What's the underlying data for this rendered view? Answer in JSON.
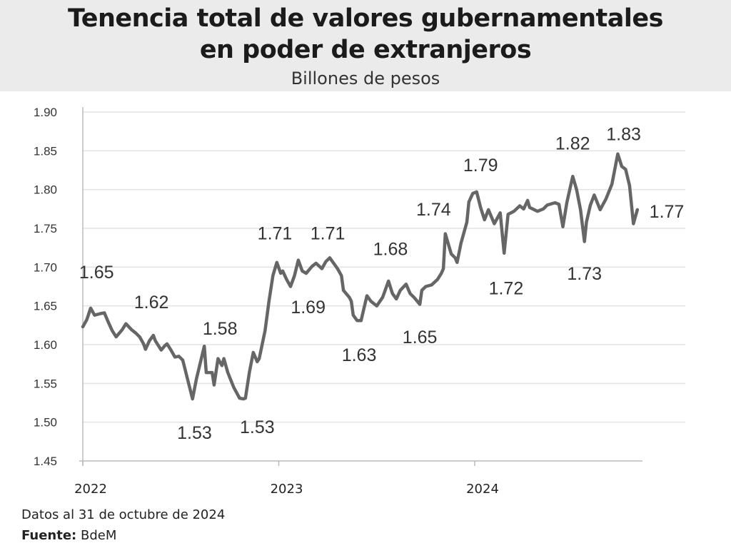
{
  "header": {
    "title_line1": "Tenencia total de valores gubernamentales",
    "title_line2": "en poder de extranjeros",
    "subtitle": "Billones de pesos"
  },
  "footer": {
    "note": "Datos al 31 de octubre de 2024",
    "source_label": "Fuente:",
    "source_value": "BdeM"
  },
  "colors": {
    "line": "#666666",
    "banner": "#ebebeb",
    "grid": "#e3e3e3"
  },
  "chart_data": {
    "type": "line",
    "title": "Tenencia total de valores gubernamentales en poder de extranjeros",
    "subtitle": "Billones de pesos",
    "xlabel": "",
    "ylabel": "",
    "xlim": [
      2022.0,
      2024.9
    ],
    "ylim": [
      1.45,
      1.9
    ],
    "yticks": [
      "1.45",
      "1.50",
      "1.55",
      "1.60",
      "1.65",
      "1.70",
      "1.75",
      "1.80",
      "1.85",
      "1.90"
    ],
    "xticks": [
      {
        "value": 2022,
        "label": "2022"
      },
      {
        "value": 2023,
        "label": "2023"
      },
      {
        "value": 2024,
        "label": "2024"
      }
    ],
    "grid": "horizontal",
    "legend": "none",
    "series": [
      {
        "x": [
          2022.0,
          2022.02,
          2022.04,
          2022.06,
          2022.09,
          2022.11,
          2022.13,
          2022.15,
          2022.17,
          2022.2,
          2022.22,
          2022.25,
          2022.27,
          2022.29,
          2022.31,
          2022.32,
          2022.34,
          2022.36,
          2022.37,
          2022.4,
          2022.42,
          2022.43,
          2022.45,
          2022.47,
          2022.49,
          2022.51,
          2022.53,
          2022.56,
          2022.58,
          2022.62,
          2022.63,
          2022.66,
          2022.67,
          2022.69,
          2022.71,
          2022.72,
          2022.74,
          2022.77,
          2022.8,
          2022.82,
          2022.83,
          2022.85,
          2022.87,
          2022.89,
          2022.9,
          2022.93,
          2022.95,
          2022.97,
          2022.99,
          2023.01,
          2023.02,
          2023.04,
          2023.06,
          2023.08,
          2023.1,
          2023.12,
          2023.14,
          2023.17,
          2023.19,
          2023.22,
          2023.24,
          2023.26,
          2023.28,
          2023.3,
          2023.32,
          2023.33,
          2023.36,
          2023.37,
          2023.38,
          2023.4,
          2023.42,
          2023.45,
          2023.47,
          2023.5,
          2023.53,
          2023.56,
          2023.58,
          2023.6,
          2023.62,
          2023.65,
          2023.67,
          2023.69,
          2023.72,
          2023.73,
          2023.75,
          2023.78,
          2023.81,
          2023.83,
          2023.84,
          2023.85,
          2023.88,
          2023.9,
          2023.91,
          2023.93,
          2023.96,
          2023.97,
          2023.99,
          2024.01,
          2024.03,
          2024.05,
          2024.07,
          2024.1,
          2024.13,
          2024.15,
          2024.17,
          2024.2,
          2024.23,
          2024.25,
          2024.27,
          2024.28,
          2024.32,
          2024.35,
          2024.37,
          2024.41,
          2024.43,
          2024.45,
          2024.47,
          2024.5,
          2024.52,
          2024.54,
          2024.56,
          2024.57,
          2024.59,
          2024.61,
          2024.64,
          2024.67,
          2024.7,
          2024.73,
          2024.75,
          2024.77,
          2024.79,
          2024.81,
          2024.83
        ],
        "y": [
          1.623,
          1.632,
          1.647,
          1.638,
          1.64,
          1.641,
          1.629,
          1.618,
          1.61,
          1.619,
          1.627,
          1.619,
          1.615,
          1.61,
          1.601,
          1.594,
          1.605,
          1.612,
          1.605,
          1.593,
          1.599,
          1.601,
          1.593,
          1.584,
          1.585,
          1.58,
          1.56,
          1.53,
          1.556,
          1.598,
          1.564,
          1.564,
          1.548,
          1.582,
          1.573,
          1.582,
          1.564,
          1.545,
          1.531,
          1.53,
          1.531,
          1.564,
          1.59,
          1.578,
          1.582,
          1.618,
          1.656,
          1.689,
          1.706,
          1.692,
          1.695,
          1.684,
          1.675,
          1.689,
          1.709,
          1.695,
          1.692,
          1.701,
          1.705,
          1.698,
          1.707,
          1.712,
          1.705,
          1.698,
          1.689,
          1.67,
          1.661,
          1.656,
          1.638,
          1.631,
          1.631,
          1.663,
          1.656,
          1.65,
          1.661,
          1.682,
          1.666,
          1.659,
          1.67,
          1.678,
          1.666,
          1.661,
          1.652,
          1.67,
          1.675,
          1.677,
          1.684,
          1.692,
          1.698,
          1.743,
          1.717,
          1.712,
          1.706,
          1.731,
          1.758,
          1.784,
          1.795,
          1.797,
          1.777,
          1.761,
          1.774,
          1.756,
          1.77,
          1.718,
          1.768,
          1.772,
          1.779,
          1.775,
          1.786,
          1.777,
          1.772,
          1.775,
          1.78,
          1.783,
          1.781,
          1.752,
          1.783,
          1.817,
          1.8,
          1.774,
          1.733,
          1.758,
          1.78,
          1.793,
          1.774,
          1.788,
          1.807,
          1.846,
          1.83,
          1.826,
          1.805,
          1.756,
          1.774
        ]
      }
    ],
    "annotations": [
      {
        "text": "1.65",
        "x": 2022.07,
        "y": 1.694
      },
      {
        "text": "1.62",
        "x": 2022.35,
        "y": 1.655
      },
      {
        "text": "1.58",
        "x": 2022.7,
        "y": 1.621
      },
      {
        "text": "1.53",
        "x": 2022.57,
        "y": 1.487
      },
      {
        "text": "1.53",
        "x": 2022.89,
        "y": 1.494
      },
      {
        "text": "1.71",
        "x": 2022.98,
        "y": 1.744
      },
      {
        "text": "1.71",
        "x": 2023.25,
        "y": 1.744
      },
      {
        "text": "1.69",
        "x": 2023.15,
        "y": 1.649
      },
      {
        "text": "1.63",
        "x": 2023.41,
        "y": 1.587
      },
      {
        "text": "1.68",
        "x": 2023.57,
        "y": 1.724
      },
      {
        "text": "1.65",
        "x": 2023.72,
        "y": 1.61
      },
      {
        "text": "1.74",
        "x": 2023.79,
        "y": 1.775
      },
      {
        "text": "1.79",
        "x": 2024.03,
        "y": 1.832
      },
      {
        "text": "1.72",
        "x": 2024.16,
        "y": 1.673
      },
      {
        "text": "1.82",
        "x": 2024.5,
        "y": 1.86
      },
      {
        "text": "1.73",
        "x": 2024.56,
        "y": 1.692
      },
      {
        "text": "1.83",
        "x": 2024.76,
        "y": 1.872
      },
      {
        "text": "1.77",
        "x": 2024.98,
        "y": 1.772
      }
    ]
  }
}
